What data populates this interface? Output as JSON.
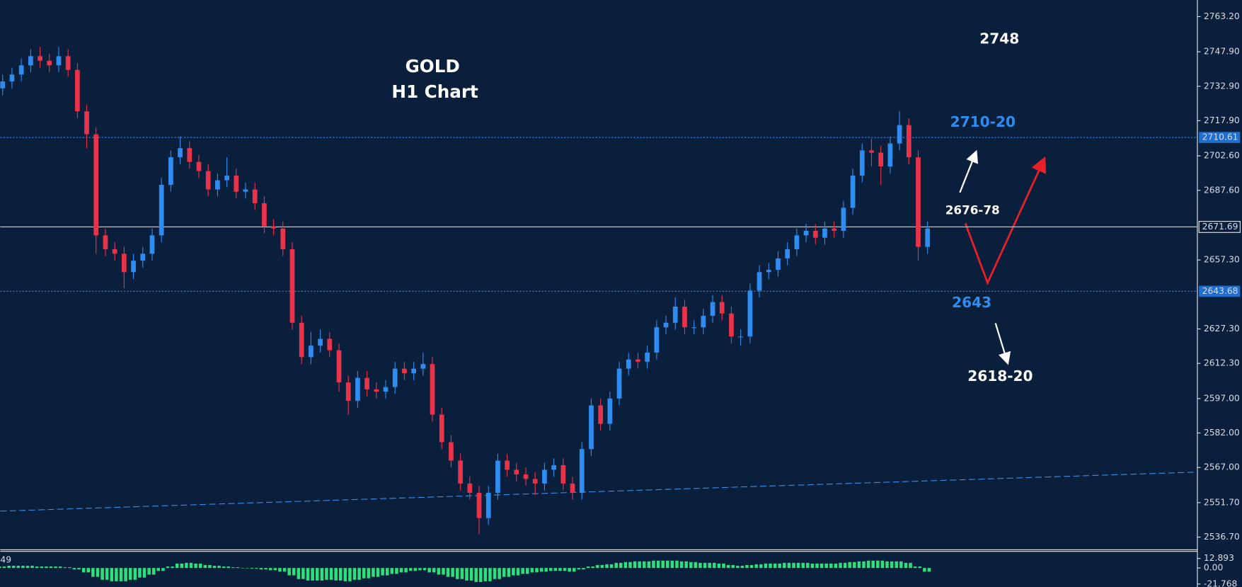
{
  "chart_data": {
    "type": "candlestick",
    "annotations": [
      "GOLD",
      "H1 Chart",
      "2748",
      "2710-20",
      "2676-78",
      "2643",
      "2618-20"
    ],
    "up_color": "#2f8cf0",
    "down_color": "#e8334a",
    "open": [
      2732,
      2735,
      2738,
      2742,
      2746,
      2744,
      2742,
      2746,
      2740,
      2722,
      2712,
      2668,
      2662,
      2660,
      2652,
      2657,
      2660,
      2668,
      2690,
      2702,
      2706,
      2700,
      2696,
      2688,
      2692,
      2694,
      2687,
      2688,
      2682,
      2672,
      2671,
      2662,
      2630,
      2615,
      2620,
      2623,
      2618,
      2604,
      2596,
      2606,
      2601,
      2600,
      2602,
      2610,
      2608,
      2610,
      2612,
      2590,
      2578,
      2570,
      2560,
      2556,
      2545,
      2556,
      2570,
      2566,
      2564,
      2562,
      2560,
      2566,
      2568,
      2560,
      2556,
      2575,
      2594,
      2586,
      2597,
      2610,
      2614,
      2613,
      2617,
      2628,
      2630,
      2637,
      2628,
      2628,
      2633,
      2639,
      2634,
      2624,
      2624,
      2644,
      2652,
      2653,
      2658,
      2662,
      2668,
      2670,
      2667,
      2671,
      2670,
      2680,
      2694,
      2705,
      2704,
      2698,
      2708,
      2716,
      2702,
      2663
    ],
    "high": [
      2738,
      2741,
      2745,
      2749,
      2750,
      2747,
      2750,
      2749,
      2743,
      2725,
      2715,
      2671,
      2665,
      2663,
      2660,
      2663,
      2671,
      2693,
      2705,
      2711,
      2709,
      2703,
      2699,
      2695,
      2702,
      2697,
      2691,
      2691,
      2685,
      2675,
      2674,
      2665,
      2633,
      2626,
      2627,
      2626,
      2621,
      2607,
      2609,
      2609,
      2604,
      2605,
      2613,
      2613,
      2613,
      2617,
      2615,
      2593,
      2581,
      2573,
      2563,
      2559,
      2559,
      2573,
      2573,
      2569,
      2567,
      2565,
      2569,
      2571,
      2571,
      2563,
      2578,
      2597,
      2597,
      2600,
      2613,
      2617,
      2617,
      2620,
      2631,
      2633,
      2641,
      2640,
      2631,
      2636,
      2642,
      2642,
      2637,
      2627,
      2647,
      2655,
      2656,
      2661,
      2665,
      2671,
      2673,
      2673,
      2674,
      2674,
      2683,
      2697,
      2708,
      2710,
      2707,
      2711,
      2722,
      2719,
      2705,
      2674
    ],
    "low": [
      2729,
      2732,
      2735,
      2739,
      2741,
      2739,
      2739,
      2737,
      2719,
      2706,
      2660,
      2659,
      2657,
      2645,
      2649,
      2654,
      2657,
      2665,
      2687,
      2699,
      2697,
      2693,
      2685,
      2685,
      2689,
      2684,
      2684,
      2679,
      2669,
      2668,
      2659,
      2627,
      2612,
      2612,
      2617,
      2615,
      2600,
      2590,
      2593,
      2598,
      2597,
      2597,
      2599,
      2605,
      2605,
      2607,
      2587,
      2575,
      2567,
      2557,
      2553,
      2538,
      2542,
      2553,
      2563,
      2561,
      2559,
      2555,
      2557,
      2563,
      2557,
      2553,
      2553,
      2572,
      2583,
      2583,
      2594,
      2607,
      2610,
      2610,
      2614,
      2625,
      2627,
      2625,
      2625,
      2625,
      2630,
      2631,
      2621,
      2620,
      2621,
      2641,
      2649,
      2650,
      2655,
      2659,
      2665,
      2664,
      2664,
      2667,
      2667,
      2677,
      2691,
      2698,
      2690,
      2695,
      2705,
      2699,
      2657,
      2660
    ],
    "close": [
      2735,
      2738,
      2742,
      2746,
      2744,
      2742,
      2746,
      2740,
      2722,
      2712,
      2668,
      2662,
      2660,
      2652,
      2657,
      2660,
      2668,
      2690,
      2702,
      2706,
      2700,
      2696,
      2688,
      2692,
      2694,
      2687,
      2688,
      2682,
      2672,
      2671,
      2662,
      2630,
      2615,
      2620,
      2623,
      2618,
      2604,
      2596,
      2606,
      2601,
      2600,
      2602,
      2610,
      2608,
      2610,
      2612,
      2590,
      2578,
      2570,
      2560,
      2556,
      2545,
      2556,
      2570,
      2566,
      2564,
      2562,
      2560,
      2566,
      2568,
      2560,
      2556,
      2575,
      2594,
      2586,
      2597,
      2610,
      2614,
      2613,
      2617,
      2628,
      2630,
      2637,
      2628,
      2628,
      2633,
      2639,
      2634,
      2624,
      2624,
      2644,
      2652,
      2653,
      2658,
      2662,
      2668,
      2670,
      2667,
      2671,
      2670,
      2680,
      2694,
      2705,
      2704,
      2698,
      2708,
      2716,
      2702,
      2663,
      2671
    ],
    "ylim": [
      2531.53,
      2770.44
    ],
    "yticks": [
      {
        "value": 2763.2,
        "label": "2763.20"
      },
      {
        "value": 2747.9,
        "label": "2747.90"
      },
      {
        "value": 2732.9,
        "label": "2732.90"
      },
      {
        "value": 2717.9,
        "label": "2717.90"
      },
      {
        "value": 2702.6,
        "label": "2702.60"
      },
      {
        "value": 2687.6,
        "label": "2687.60"
      },
      {
        "value": 2657.3,
        "label": "2657.30"
      },
      {
        "value": 2627.3,
        "label": "2627.30"
      },
      {
        "value": 2612.3,
        "label": "2612.30"
      },
      {
        "value": 2597,
        "label": "2597.00"
      },
      {
        "value": 2582,
        "label": "2582.00"
      },
      {
        "value": 2567,
        "label": "2567.00"
      },
      {
        "value": 2551.7,
        "label": "2551.70"
      },
      {
        "value": 2536.7,
        "label": "2536.70"
      }
    ],
    "levels": [
      {
        "value": 2710.61,
        "color": "#2e8df0"
      },
      {
        "value": 2671.69,
        "color": "#c8ccd4"
      },
      {
        "value": 2643.68,
        "color": "#2e8df0"
      }
    ],
    "ma": {
      "color": "#3a8ee6",
      "values": [
        2548,
        2565
      ]
    },
    "macd": {
      "label": "49",
      "color": "#2ee07a",
      "ylim": [
        -25.8,
        21.5
      ],
      "yticks": [
        12.893,
        {
          "value": 0,
          "label": "0.00"
        },
        -21.768
      ],
      "values": [
        2,
        3,
        3,
        3,
        2,
        2,
        2,
        1,
        -2,
        -6,
        -12,
        -16,
        -18,
        -18,
        -16,
        -13,
        -9,
        -4,
        2,
        6,
        7,
        6,
        4,
        3,
        2,
        1,
        0,
        -1,
        -2,
        -3,
        -5,
        -10,
        -15,
        -17,
        -17,
        -16,
        -17,
        -18,
        -16,
        -14,
        -12,
        -10,
        -8,
        -6,
        -4,
        -3,
        -6,
        -9,
        -12,
        -15,
        -17,
        -19,
        -18,
        -15,
        -12,
        -10,
        -8,
        -6,
        -5,
        -4,
        -4,
        -5,
        -2,
        2,
        4,
        5,
        7,
        8,
        9,
        9,
        10,
        10,
        10,
        9,
        8,
        7,
        7,
        6,
        4,
        3,
        4,
        5,
        6,
        6,
        7,
        7,
        7,
        6,
        6,
        6,
        7,
        8,
        9,
        10,
        10,
        9,
        9,
        7,
        2,
        -5
      ]
    }
  }
}
